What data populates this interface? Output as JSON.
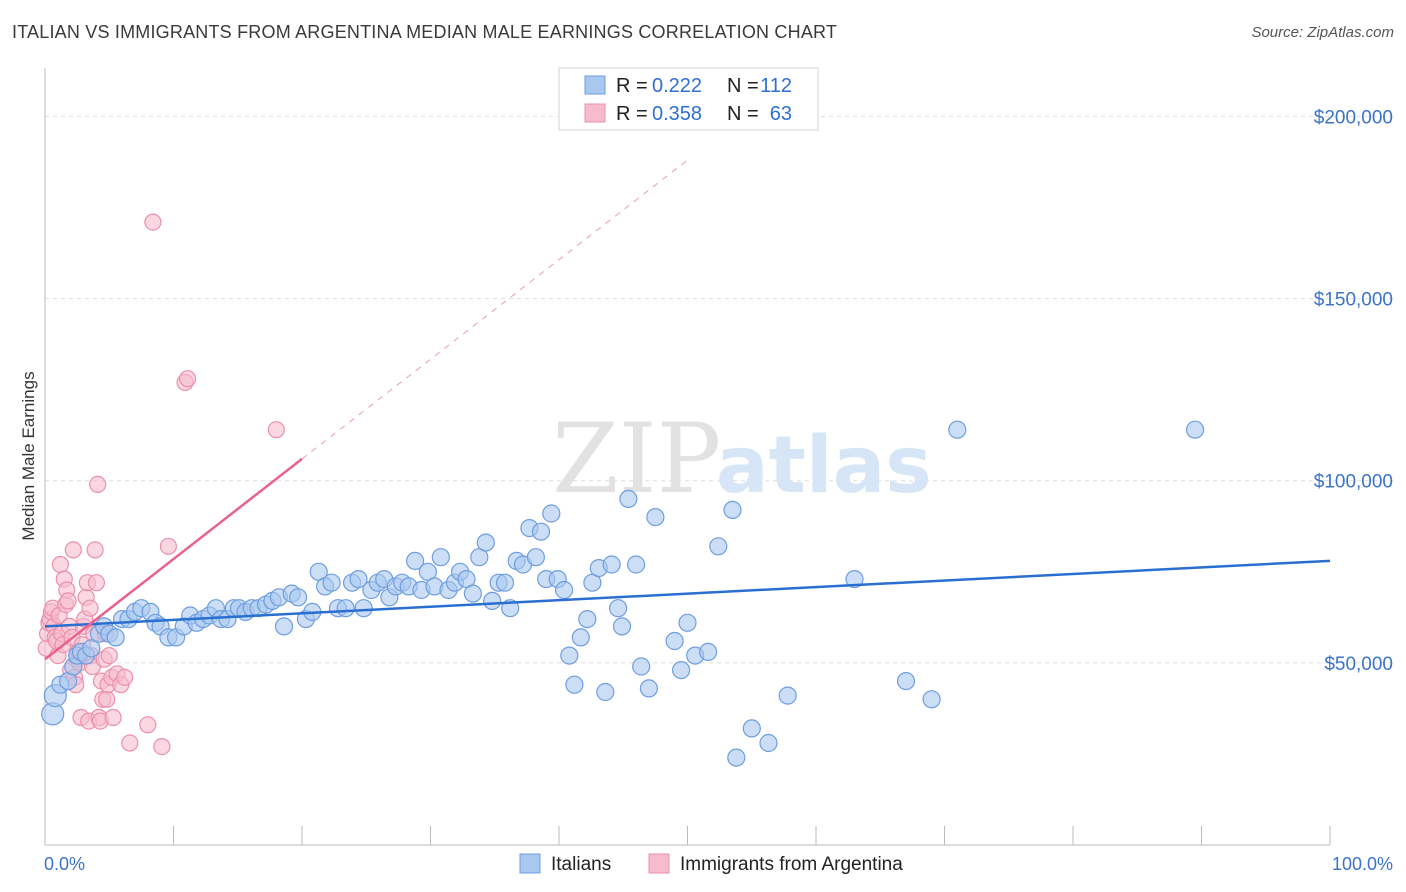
{
  "title": "ITALIAN VS IMMIGRANTS FROM ARGENTINA MEDIAN MALE EARNINGS CORRELATION CHART",
  "source": "Source: ZipAtlas.com",
  "watermark": {
    "part1": "ZIP",
    "part2": "atlas"
  },
  "colors": {
    "blue_fill": "#a9c8f0",
    "blue_stroke": "#6e9ee0",
    "blue_line": "#2a6fd0",
    "pink_fill": "#f6bccd",
    "pink_stroke": "#ec8fab",
    "pink_line": "#e8628a",
    "grid": "#dddddd",
    "axis_text": "#3b73c6"
  },
  "legend": {
    "r_label": "R =",
    "n_label": "N =",
    "rows": [
      {
        "series": "Italians",
        "r": "0.222",
        "n": "112"
      },
      {
        "series": "Immigrants from Argentina",
        "r": "0.358",
        "n": "63"
      }
    ]
  },
  "chart_data": {
    "type": "scatter",
    "title": "ITALIAN VS IMMIGRANTS FROM ARGENTINA MEDIAN MALE EARNINGS CORRELATION CHART",
    "xlabel": "",
    "ylabel": "Median Male Earnings",
    "xlim": [
      0,
      100
    ],
    "ylim": [
      0,
      210000
    ],
    "x_tick_labels": [
      "0.0%",
      "100.0%"
    ],
    "y_ticks": [
      50000,
      100000,
      150000,
      200000
    ],
    "y_tick_labels": [
      "$50,000",
      "$100,000",
      "$150,000",
      "$200,000"
    ],
    "grid": true,
    "legend_position": "top-center",
    "series": [
      {
        "name": "Italians",
        "r": 0.222,
        "n": 112,
        "trend": {
          "x0": 0,
          "y0": 60000,
          "x1": 100,
          "y1": 78000
        },
        "points": [
          [
            0.6,
            36000
          ],
          [
            0.8,
            41000
          ],
          [
            1.2,
            44000
          ],
          [
            1.8,
            45000
          ],
          [
            2.2,
            49000
          ],
          [
            2.5,
            52000
          ],
          [
            2.8,
            53000
          ],
          [
            3.2,
            52000
          ],
          [
            3.6,
            54000
          ],
          [
            4.2,
            58000
          ],
          [
            4.6,
            60000
          ],
          [
            5.0,
            58000
          ],
          [
            5.5,
            57000
          ],
          [
            6.0,
            62000
          ],
          [
            6.5,
            62000
          ],
          [
            7.0,
            64000
          ],
          [
            7.5,
            65000
          ],
          [
            8.2,
            64000
          ],
          [
            8.6,
            61000
          ],
          [
            9.0,
            60000
          ],
          [
            9.6,
            57000
          ],
          [
            10.2,
            57000
          ],
          [
            10.8,
            60000
          ],
          [
            11.3,
            63000
          ],
          [
            11.8,
            61000
          ],
          [
            12.3,
            62000
          ],
          [
            12.8,
            63000
          ],
          [
            13.3,
            65000
          ],
          [
            13.7,
            62000
          ],
          [
            14.2,
            62000
          ],
          [
            14.7,
            65000
          ],
          [
            15.1,
            65000
          ],
          [
            15.6,
            64000
          ],
          [
            16.1,
            65000
          ],
          [
            16.6,
            65000
          ],
          [
            17.2,
            66000
          ],
          [
            17.7,
            67000
          ],
          [
            18.2,
            68000
          ],
          [
            18.6,
            60000
          ],
          [
            19.2,
            69000
          ],
          [
            19.7,
            68000
          ],
          [
            20.3,
            62000
          ],
          [
            20.8,
            64000
          ],
          [
            21.3,
            75000
          ],
          [
            21.8,
            71000
          ],
          [
            22.3,
            72000
          ],
          [
            22.8,
            65000
          ],
          [
            23.4,
            65000
          ],
          [
            23.9,
            72000
          ],
          [
            24.4,
            73000
          ],
          [
            24.8,
            65000
          ],
          [
            25.4,
            70000
          ],
          [
            25.9,
            72000
          ],
          [
            26.4,
            73000
          ],
          [
            26.8,
            68000
          ],
          [
            27.3,
            71000
          ],
          [
            27.8,
            72000
          ],
          [
            28.3,
            71000
          ],
          [
            28.8,
            78000
          ],
          [
            29.3,
            70000
          ],
          [
            29.8,
            75000
          ],
          [
            30.3,
            71000
          ],
          [
            30.8,
            79000
          ],
          [
            31.4,
            70000
          ],
          [
            31.9,
            72000
          ],
          [
            32.3,
            75000
          ],
          [
            32.8,
            73000
          ],
          [
            33.3,
            69000
          ],
          [
            33.8,
            79000
          ],
          [
            34.3,
            83000
          ],
          [
            34.8,
            67000
          ],
          [
            35.3,
            72000
          ],
          [
            35.8,
            72000
          ],
          [
            36.2,
            65000
          ],
          [
            36.7,
            78000
          ],
          [
            37.2,
            77000
          ],
          [
            37.7,
            87000
          ],
          [
            38.2,
            79000
          ],
          [
            38.6,
            86000
          ],
          [
            39.0,
            73000
          ],
          [
            39.4,
            91000
          ],
          [
            39.9,
            73000
          ],
          [
            40.4,
            70000
          ],
          [
            40.8,
            52000
          ],
          [
            41.2,
            44000
          ],
          [
            41.7,
            57000
          ],
          [
            42.2,
            62000
          ],
          [
            42.6,
            72000
          ],
          [
            43.1,
            76000
          ],
          [
            43.6,
            42000
          ],
          [
            44.1,
            77000
          ],
          [
            44.6,
            65000
          ],
          [
            44.9,
            60000
          ],
          [
            45.4,
            95000
          ],
          [
            46.0,
            77000
          ],
          [
            46.4,
            49000
          ],
          [
            47.0,
            43000
          ],
          [
            47.5,
            90000
          ],
          [
            49.0,
            56000
          ],
          [
            49.5,
            48000
          ],
          [
            50.0,
            61000
          ],
          [
            50.6,
            52000
          ],
          [
            51.6,
            53000
          ],
          [
            52.4,
            82000
          ],
          [
            53.5,
            92000
          ],
          [
            55.0,
            32000
          ],
          [
            56.3,
            28000
          ],
          [
            57.8,
            41000
          ],
          [
            63.0,
            73000
          ],
          [
            67.0,
            45000
          ],
          [
            69.0,
            40000
          ],
          [
            71.0,
            114000
          ],
          [
            89.5,
            114000
          ],
          [
            53.8,
            24000
          ]
        ]
      },
      {
        "name": "Immigrants from Argentina",
        "r": 0.358,
        "n": 63,
        "trend": {
          "x0": 0,
          "y0": 51000,
          "x1": 20,
          "y1": 106000
        },
        "trend_extension": {
          "x0": 20,
          "y0": 106000,
          "x1": 50,
          "y1": 188000
        },
        "points": [
          [
            0.1,
            54000
          ],
          [
            0.2,
            58000
          ],
          [
            0.3,
            61000
          ],
          [
            0.4,
            62000
          ],
          [
            0.5,
            64000
          ],
          [
            0.6,
            65000
          ],
          [
            0.7,
            60000
          ],
          [
            0.8,
            57000
          ],
          [
            0.9,
            56000
          ],
          [
            1.0,
            52000
          ],
          [
            1.1,
            63000
          ],
          [
            1.2,
            77000
          ],
          [
            1.3,
            58000
          ],
          [
            1.4,
            55000
          ],
          [
            1.5,
            73000
          ],
          [
            1.6,
            66000
          ],
          [
            1.7,
            70000
          ],
          [
            1.8,
            67000
          ],
          [
            1.9,
            60000
          ],
          [
            2.0,
            48000
          ],
          [
            2.1,
            57000
          ],
          [
            2.2,
            81000
          ],
          [
            2.3,
            46000
          ],
          [
            2.4,
            44000
          ],
          [
            2.5,
            51000
          ],
          [
            2.6,
            53000
          ],
          [
            2.7,
            50000
          ],
          [
            2.8,
            35000
          ],
          [
            2.9,
            55000
          ],
          [
            3.0,
            60000
          ],
          [
            3.1,
            62000
          ],
          [
            3.2,
            68000
          ],
          [
            3.3,
            72000
          ],
          [
            3.4,
            34000
          ],
          [
            3.5,
            65000
          ],
          [
            3.6,
            52000
          ],
          [
            3.7,
            49000
          ],
          [
            3.8,
            58000
          ],
          [
            3.9,
            81000
          ],
          [
            4.0,
            72000
          ],
          [
            4.1,
            99000
          ],
          [
            4.2,
            35000
          ],
          [
            4.3,
            34000
          ],
          [
            4.4,
            45000
          ],
          [
            4.5,
            40000
          ],
          [
            4.6,
            51000
          ],
          [
            4.7,
            58000
          ],
          [
            4.8,
            40000
          ],
          [
            4.9,
            44000
          ],
          [
            5.0,
            52000
          ],
          [
            5.2,
            46000
          ],
          [
            5.3,
            35000
          ],
          [
            5.6,
            47000
          ],
          [
            5.9,
            44000
          ],
          [
            6.2,
            46000
          ],
          [
            6.6,
            28000
          ],
          [
            8.0,
            33000
          ],
          [
            8.4,
            171000
          ],
          [
            9.1,
            27000
          ],
          [
            9.6,
            82000
          ],
          [
            10.9,
            127000
          ],
          [
            11.1,
            128000
          ],
          [
            18.0,
            114000
          ]
        ]
      }
    ]
  },
  "bottom_legend": [
    {
      "label": "Italians"
    },
    {
      "label": "Immigrants from Argentina"
    }
  ]
}
